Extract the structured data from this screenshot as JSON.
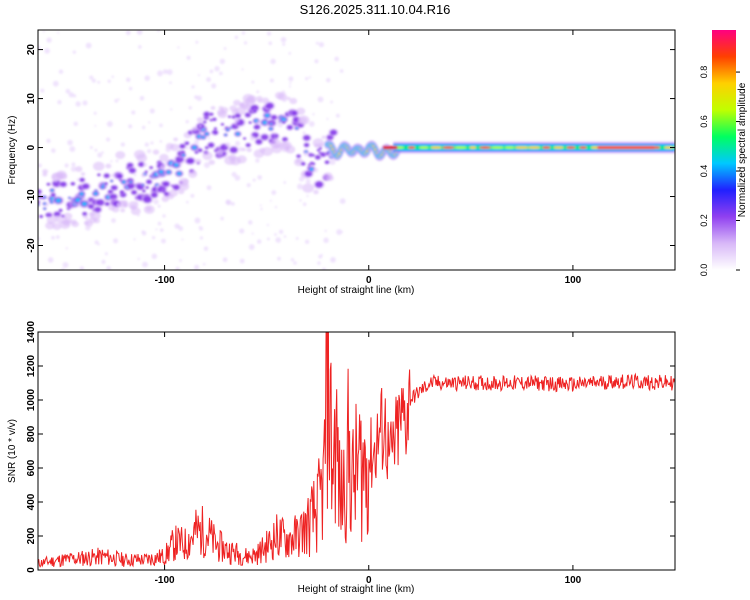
{
  "page": {
    "title": "S126.2025.311.10.04.R16"
  },
  "chart_data": [
    {
      "type": "heatmap",
      "xlabel": "Height of straight line (km)",
      "ylabel": "Frequency (Hz)",
      "xlim": [
        -162,
        150
      ],
      "ylim": [
        -25,
        24
      ],
      "xticks": [
        -100,
        0,
        100
      ],
      "xtick_labels": [
        "-100",
        "0",
        "100"
      ],
      "yticks": [
        -20,
        -10,
        0,
        10,
        20
      ],
      "ytick_labels": [
        "-20",
        "-10",
        "0",
        "10",
        "20"
      ],
      "grid": false,
      "colorbar": {
        "label": "Normalized spectral amplitude",
        "range": [
          0,
          0.97
        ],
        "ticks": [
          0.0,
          0.2,
          0.4,
          0.6,
          0.8
        ],
        "tick_labels": [
          "0.0",
          "0.2",
          "0.4",
          "0.6",
          "0.8"
        ],
        "colors": [
          "#ffffff",
          "#d8b8f8",
          "#9040f0",
          "#2020ff",
          "#00c8ff",
          "#00ff60",
          "#c0ff00",
          "#ffd000",
          "#ff4000",
          "#ff0080"
        ]
      },
      "ridge": {
        "x": [
          -162,
          -150,
          -140,
          -130,
          -120,
          -110,
          -100,
          -90,
          -80,
          -70,
          -60,
          -50,
          -40,
          -35,
          -30,
          -25,
          -22,
          -20,
          -15,
          -10,
          -5,
          0,
          5,
          10,
          20,
          40,
          60,
          80,
          100,
          120,
          150
        ],
        "y": [
          -11,
          -10,
          -10,
          -9,
          -7,
          -7,
          -6,
          -3,
          3,
          2,
          4,
          5,
          5,
          3,
          -2,
          -5,
          -3,
          0,
          -1,
          0,
          -1,
          0,
          -1,
          -1,
          0,
          0,
          0,
          0,
          0,
          0,
          0
        ]
      }
    },
    {
      "type": "line",
      "xlabel": "Height of straight line (km)",
      "ylabel": "SNR (10 * v/v)",
      "xlim": [
        -162,
        150
      ],
      "ylim": [
        0,
        1400
      ],
      "xticks": [
        -100,
        0,
        100
      ],
      "xtick_labels": [
        "-100",
        "0",
        "100"
      ],
      "yticks": [
        0,
        200,
        400,
        600,
        800,
        1000,
        1200,
        1400
      ],
      "ytick_labels": [
        "0",
        "200",
        "400",
        "600",
        "800",
        "1000",
        "1200",
        "1400"
      ],
      "grid": false,
      "series": [
        {
          "color": "#ee2222",
          "x": [
            -162,
            -150,
            -140,
            -130,
            -120,
            -110,
            -100,
            -95,
            -90,
            -85,
            -80,
            -75,
            -70,
            -65,
            -60,
            -55,
            -50,
            -45,
            -40,
            -35,
            -30,
            -25,
            -22,
            -20,
            -18,
            -16,
            -14,
            -12,
            -10,
            -8,
            -5,
            -3,
            0,
            3,
            5,
            8,
            10,
            12,
            15,
            18,
            20,
            25,
            30,
            40,
            50,
            60,
            80,
            100,
            120,
            150
          ],
          "y": [
            40,
            60,
            70,
            80,
            60,
            60,
            80,
            160,
            150,
            220,
            230,
            150,
            120,
            100,
            80,
            90,
            140,
            200,
            180,
            200,
            260,
            350,
            500,
            1350,
            600,
            800,
            400,
            500,
            700,
            500,
            620,
            600,
            650,
            700,
            800,
            850,
            640,
            700,
            850,
            900,
            1000,
            1050,
            1100,
            1100,
            1100,
            1100,
            1100,
            1090,
            1110,
            1100
          ]
        }
      ]
    }
  ]
}
